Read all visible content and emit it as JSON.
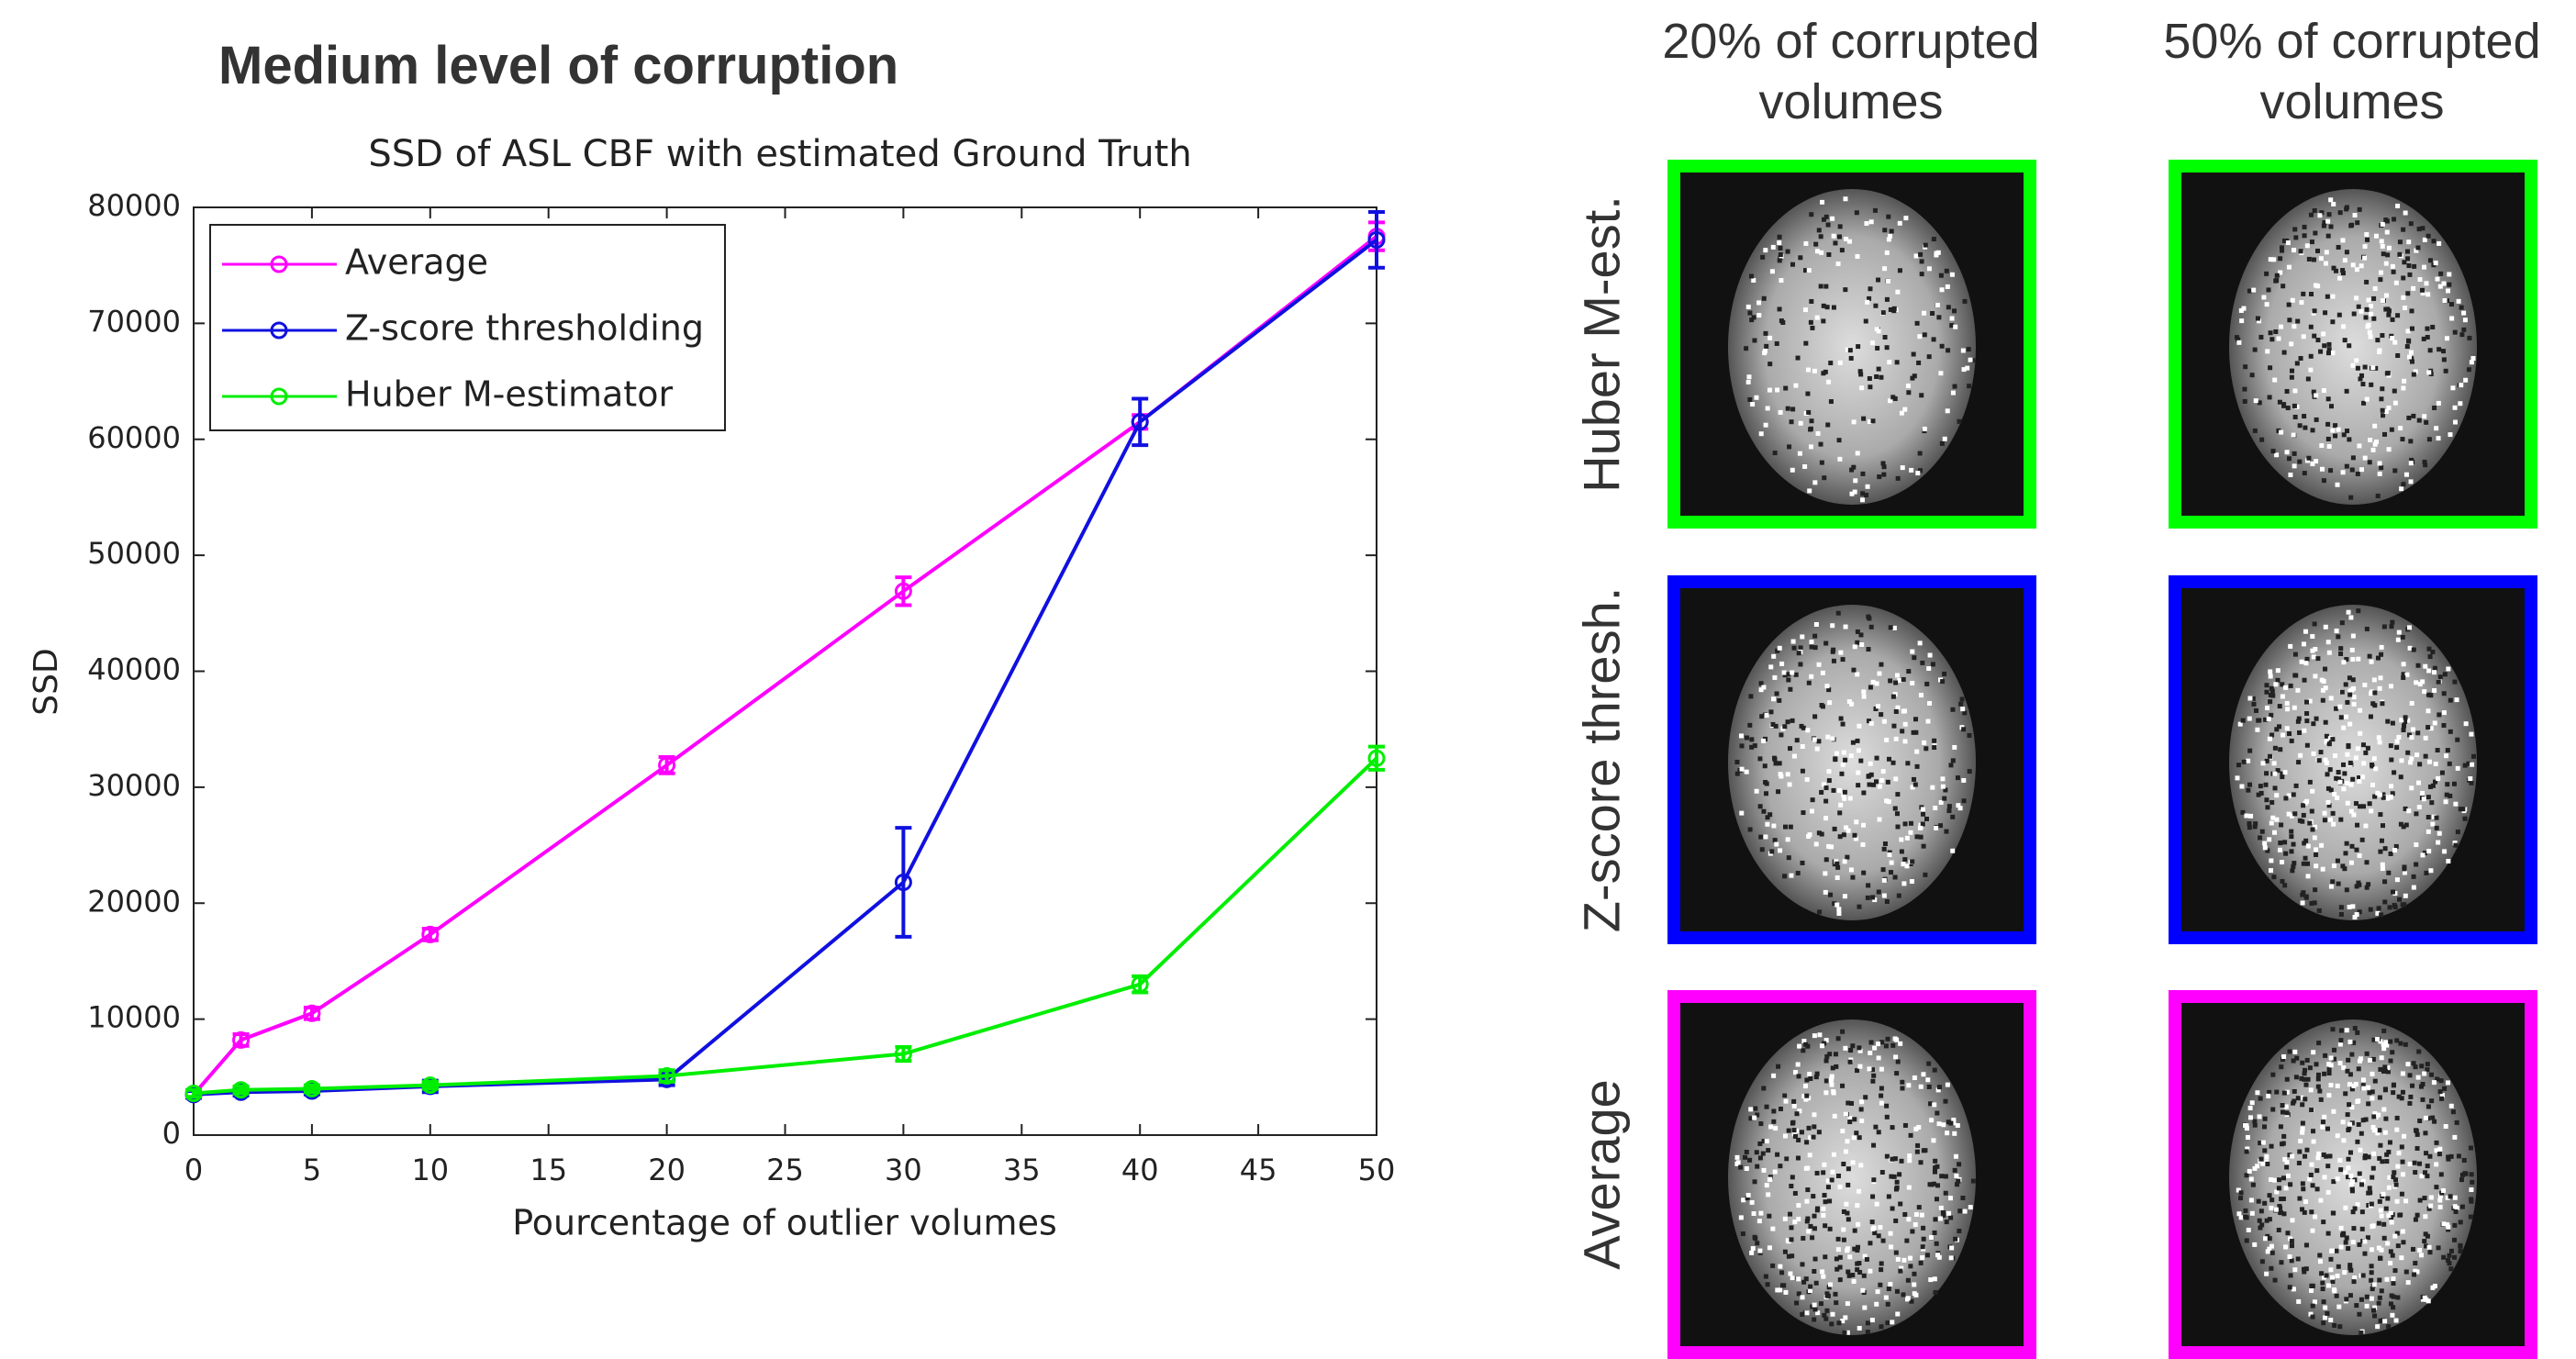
{
  "title": "Medium level of corruption",
  "chart_data": {
    "type": "line",
    "title": "SSD of ASL CBF with estimated Ground Truth",
    "x_label": "Pourcentage of outlier volumes",
    "y_label": "SSD",
    "x": [
      0,
      2,
      5,
      10,
      20,
      30,
      40,
      50
    ],
    "series": [
      {
        "name": "Average",
        "color": "#ff00ff",
        "values": [
          3500,
          8200,
          10500,
          17300,
          31900,
          46900,
          61500,
          77500
        ],
        "errors": [
          300,
          500,
          500,
          500,
          700,
          1200,
          600,
          1200
        ]
      },
      {
        "name": "Z-score thresholding",
        "color": "#1010e0",
        "values": [
          3500,
          3700,
          3800,
          4200,
          4800,
          21800,
          61500,
          77200
        ],
        "errors": [
          300,
          300,
          300,
          500,
          500,
          4700,
          2000,
          2400
        ]
      },
      {
        "name": "Huber M-estimator",
        "color": "#00ee00",
        "values": [
          3600,
          3900,
          4000,
          4300,
          5100,
          7000,
          13000,
          32500
        ],
        "errors": [
          300,
          300,
          300,
          300,
          500,
          600,
          700,
          1000
        ]
      }
    ],
    "xlim": [
      0,
      50
    ],
    "xticks": [
      0,
      5,
      10,
      15,
      20,
      25,
      30,
      35,
      40,
      45,
      50
    ],
    "ylim": [
      0,
      80000
    ],
    "yticks": [
      0,
      10000,
      20000,
      30000,
      40000,
      50000,
      60000,
      70000,
      80000
    ],
    "legend": "upper left"
  },
  "image_grid": {
    "columns": [
      "20% of corrupted volumes",
      "50% of corrupted volumes"
    ],
    "rows": [
      {
        "label": "Huber M-est.",
        "color": "#00ff00"
      },
      {
        "label": "Z-score thresh.",
        "color": "#0000ff"
      },
      {
        "label": "Average",
        "color": "#ff00ff"
      }
    ]
  }
}
